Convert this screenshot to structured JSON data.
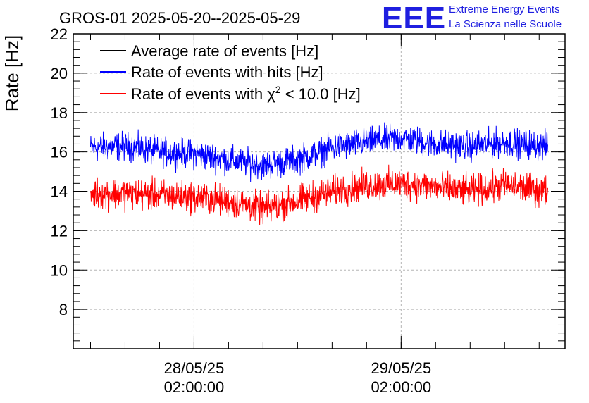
{
  "chart_data": {
    "type": "line",
    "title": "GROS-01 2025-05-20--2025-05-29",
    "ylabel": "Rate [Hz]",
    "xlabel": "",
    "ylim": [
      6,
      22
    ],
    "yticks": [
      8,
      10,
      12,
      14,
      16,
      18,
      20,
      22
    ],
    "xlim": [
      "2025-05-27 12:00",
      "2025-05-29 21:00"
    ],
    "xtick_labels": [
      {
        "at": "2025-05-28 02:00",
        "date": "28/05/25",
        "time": "02:00:00"
      },
      {
        "at": "2025-05-29 02:00",
        "date": "29/05/25",
        "time": "02:00:00"
      }
    ],
    "grid": true,
    "legend_position": "top-left",
    "legend": [
      {
        "text": "Average rate of events [Hz]",
        "color": "#000000"
      },
      {
        "text": "Rate of events with hits [Hz]",
        "color": "#0000ff"
      },
      {
        "text_prefix": "Rate of events with ",
        "chi": "χ",
        "sup": "2",
        "text_suffix": " < 10.0 [Hz]",
        "color": "#ff0000"
      }
    ],
    "series": [
      {
        "name": "Rate of events with hits [Hz]",
        "color": "#0000ff",
        "x": [
          "2025-05-27 14:00",
          "2025-05-27 18:00",
          "2025-05-27 22:00",
          "2025-05-28 02:00",
          "2025-05-28 06:00",
          "2025-05-28 10:00",
          "2025-05-28 14:00",
          "2025-05-28 18:00",
          "2025-05-28 22:00",
          "2025-05-29 02:00",
          "2025-05-29 06:00",
          "2025-05-29 10:00",
          "2025-05-29 14:00",
          "2025-05-29 19:00"
        ],
        "values": [
          16.2,
          16.3,
          16.0,
          15.9,
          15.6,
          15.3,
          15.6,
          16.2,
          16.5,
          16.7,
          16.4,
          16.3,
          16.5,
          16.3
        ],
        "noise": 0.55
      },
      {
        "name": "Rate of events with χ2 < 10.0 [Hz]",
        "color": "#ff0000",
        "x": [
          "2025-05-27 14:00",
          "2025-05-27 18:00",
          "2025-05-27 22:00",
          "2025-05-28 02:00",
          "2025-05-28 06:00",
          "2025-05-28 10:00",
          "2025-05-28 14:00",
          "2025-05-28 18:00",
          "2025-05-28 22:00",
          "2025-05-29 02:00",
          "2025-05-29 06:00",
          "2025-05-29 10:00",
          "2025-05-29 14:00",
          "2025-05-29 19:00"
        ],
        "values": [
          13.9,
          13.9,
          13.8,
          13.7,
          13.5,
          13.1,
          13.5,
          14.0,
          14.3,
          14.4,
          14.2,
          14.0,
          14.3,
          14.0
        ],
        "noise": 0.6
      }
    ]
  },
  "logo": {
    "mark": "EEE",
    "line1": "Extreme Energy Events",
    "line2": "La Scienza nelle Scuole"
  }
}
